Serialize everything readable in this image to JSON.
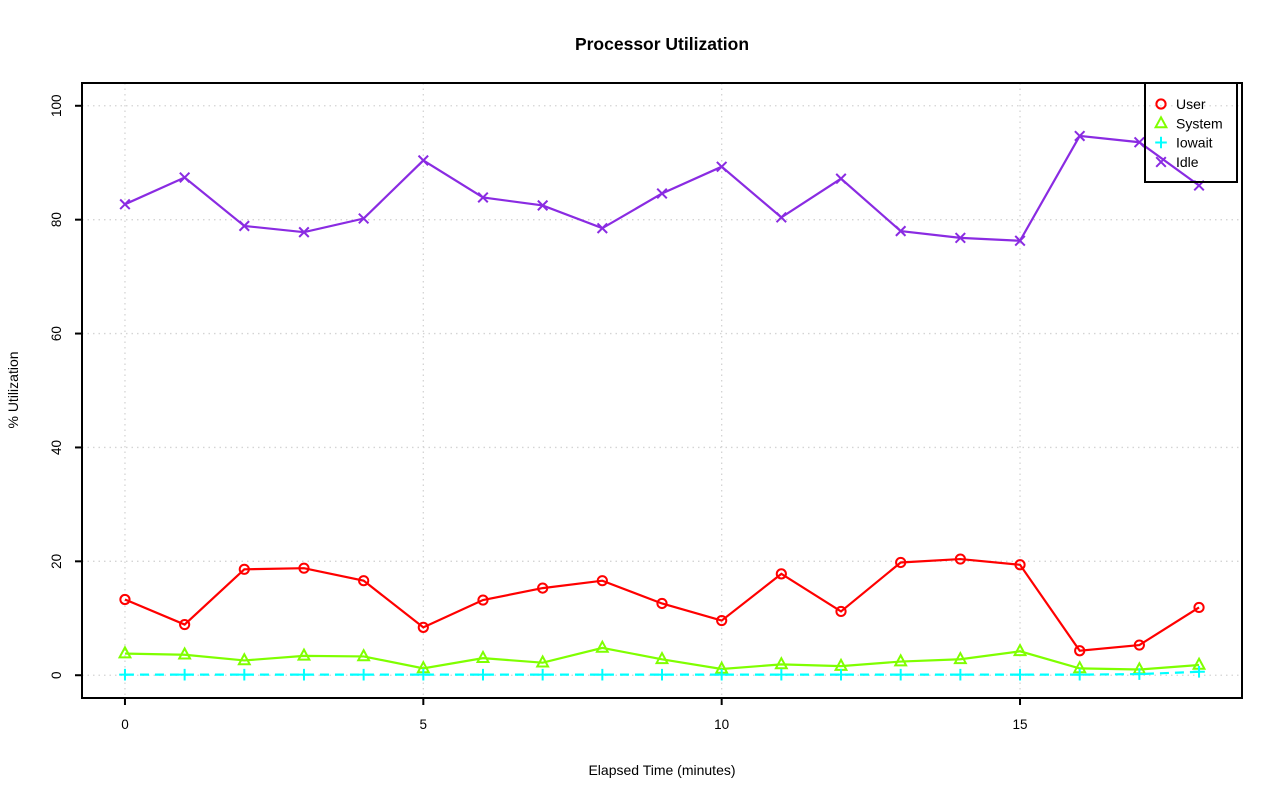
{
  "chart_data": {
    "type": "line",
    "title": "Processor Utilization",
    "xlabel": "Elapsed Time (minutes)",
    "ylabel": "% Utilization",
    "xlim": [
      0,
      18
    ],
    "ylim": [
      0,
      100
    ],
    "x_ticks": [
      0,
      5,
      10,
      15
    ],
    "y_ticks": [
      0,
      20,
      40,
      60,
      80,
      100
    ],
    "x_tick_labels": [
      "0",
      "5",
      "10",
      "15"
    ],
    "y_tick_labels": [
      "0",
      "20",
      "40",
      "60",
      "80",
      "100"
    ],
    "grid": "dotted-lightgray-at-ticks",
    "legend_position": "top-right",
    "legend_transparent": true,
    "x": [
      0,
      1,
      2,
      3,
      4,
      5,
      6,
      7,
      8,
      9,
      10,
      11,
      12,
      13,
      14,
      15,
      16,
      17,
      18
    ],
    "series": [
      {
        "name": "User",
        "color": "#FF0000",
        "marker": "circle",
        "line": "solid",
        "values": [
          13.3,
          8.9,
          18.6,
          18.8,
          16.6,
          8.4,
          13.2,
          15.3,
          16.6,
          12.6,
          9.6,
          17.8,
          11.2,
          19.8,
          20.4,
          19.4,
          4.3,
          5.3,
          11.9
        ]
      },
      {
        "name": "System",
        "color": "#7FFF00",
        "marker": "triangle",
        "line": "solid",
        "values": [
          3.8,
          3.6,
          2.6,
          3.4,
          3.3,
          1.2,
          3.0,
          2.2,
          4.8,
          2.8,
          1.1,
          1.9,
          1.6,
          2.4,
          2.8,
          4.2,
          1.2,
          1.0,
          1.8
        ]
      },
      {
        "name": "Iowait",
        "color": "#00FFFF",
        "marker": "plus",
        "line": "dashed",
        "values": [
          0.1,
          0.1,
          0.1,
          0.1,
          0.1,
          0.1,
          0.1,
          0.1,
          0.1,
          0.1,
          0.1,
          0.1,
          0.1,
          0.1,
          0.1,
          0.1,
          0.1,
          0.2,
          0.6
        ]
      },
      {
        "name": "Idle",
        "color": "#8A2BE2",
        "marker": "x",
        "line": "solid",
        "values": [
          82.7,
          87.4,
          78.9,
          77.8,
          80.2,
          90.4,
          83.9,
          82.5,
          78.5,
          84.6,
          89.3,
          80.4,
          87.2,
          78.0,
          76.8,
          76.3,
          94.7,
          93.6,
          86.0
        ]
      }
    ]
  }
}
